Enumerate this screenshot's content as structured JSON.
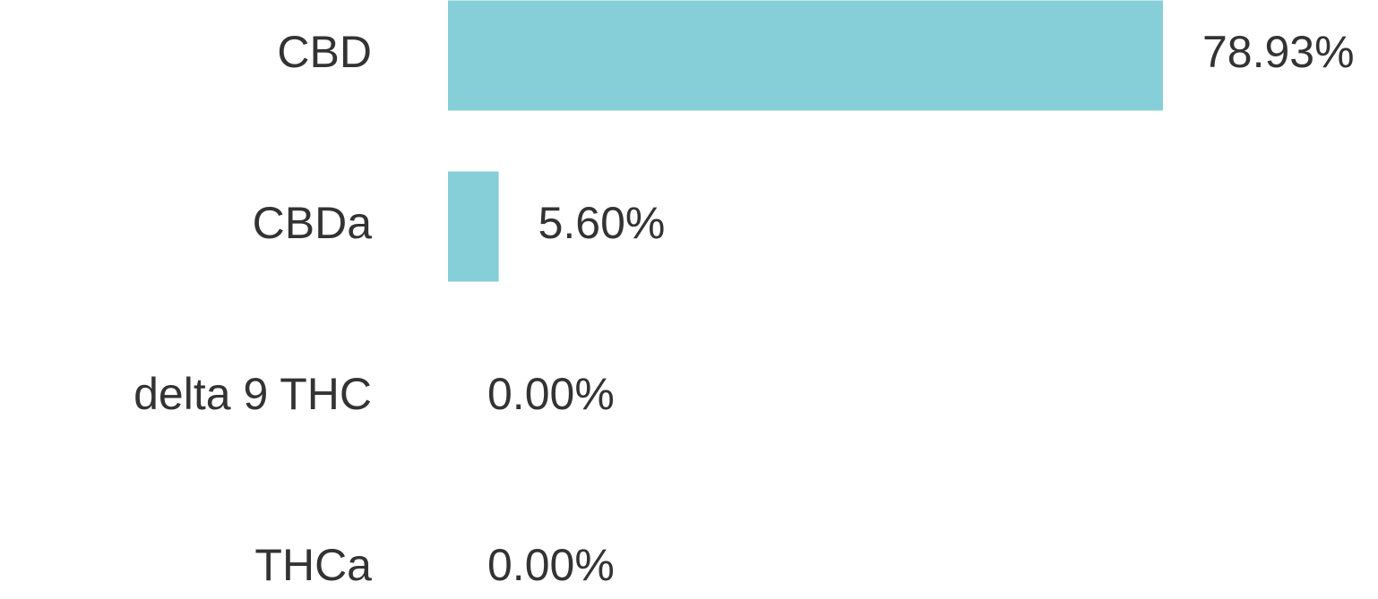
{
  "chart_data": {
    "type": "barh",
    "categories": [
      "CBD",
      "CBDa",
      "delta 9 THC",
      "THCa"
    ],
    "values": [
      78.93,
      5.6,
      0.0,
      0.0
    ],
    "value_labels": [
      "78.93%",
      "5.60%",
      "0.00%",
      "0.00%"
    ],
    "color": "#86cfd8"
  }
}
